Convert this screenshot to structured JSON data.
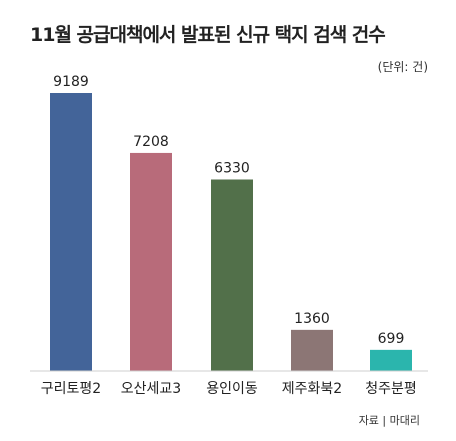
{
  "chart_data": {
    "type": "bar",
    "title": "11월 공급대책에서 발표된 신규 택지 검색 건수",
    "unit_label": "(단위: 건)",
    "source": "자료 | 마대리",
    "categories": [
      "구리토평2",
      "오산세교3",
      "용인이동",
      "제주화북2",
      "청주분평"
    ],
    "values": [
      9189,
      7208,
      6330,
      1360,
      699
    ],
    "value_labels": [
      "9189",
      "7208",
      "6330",
      "1360",
      "699"
    ],
    "colors": [
      "#436499",
      "#b86b7a",
      "#52704a",
      "#8c7675",
      "#2bb5ad"
    ],
    "xlabel": "",
    "ylabel": "",
    "ylim": [
      0,
      9189
    ],
    "grid": false,
    "legend": "none"
  }
}
